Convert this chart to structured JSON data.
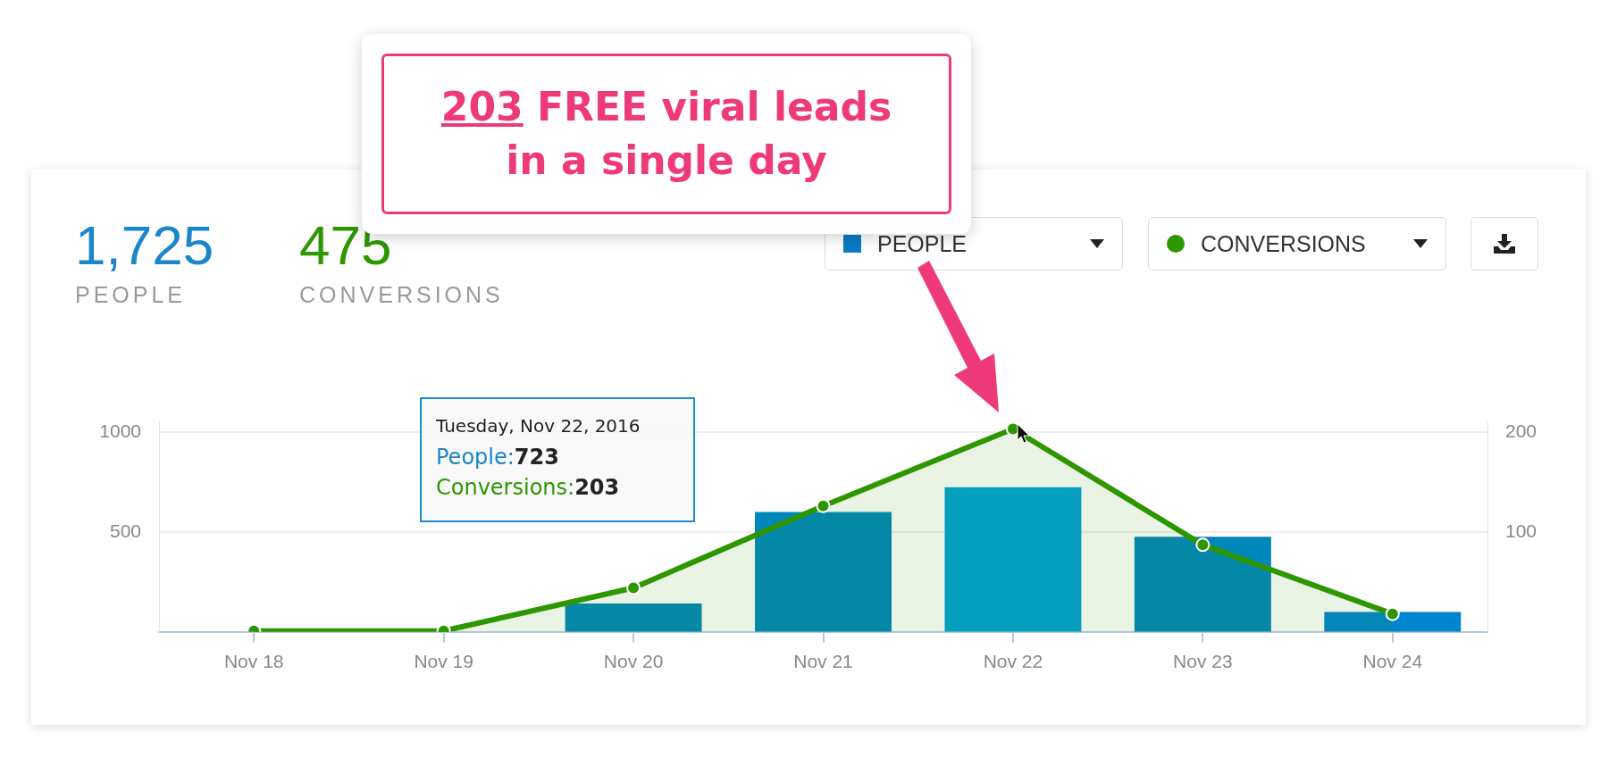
{
  "chart_data": {
    "type": "bar",
    "categories": [
      "Nov 18",
      "Nov 19",
      "Nov 20",
      "Nov 21",
      "Nov 22",
      "Nov 23",
      "Nov 24"
    ],
    "series": [
      {
        "name": "PEOPLE",
        "colors": [
          "#0087b9",
          "#0087b9",
          "#0087b9",
          "#0087b9",
          "#00a0d2",
          "#0087b9",
          "#0085cf"
        ],
        "values": [
          0,
          0,
          142,
          600,
          723,
          476,
          99
        ]
      },
      {
        "name": "CONVERSIONS",
        "type": "area",
        "axis": "y2",
        "color": "#2d9600",
        "values": [
          1,
          1,
          44,
          126,
          203,
          87,
          18
        ]
      }
    ],
    "ylim": [
      0,
      1050
    ],
    "yticks": [
      500,
      1000
    ],
    "y2lim": [
      0,
      210
    ],
    "y2ticks": [
      100,
      200
    ],
    "grid": "y",
    "legend": "top right",
    "marker": "circle",
    "annotations": [
      "1,725",
      "PEOPLE",
      "475",
      "CONVERSIONS",
      "203 FREE viral leads in a single day",
      "Tuesday, Nov 22, 2016",
      "People:723",
      "Conversions:203"
    ]
  }
}
